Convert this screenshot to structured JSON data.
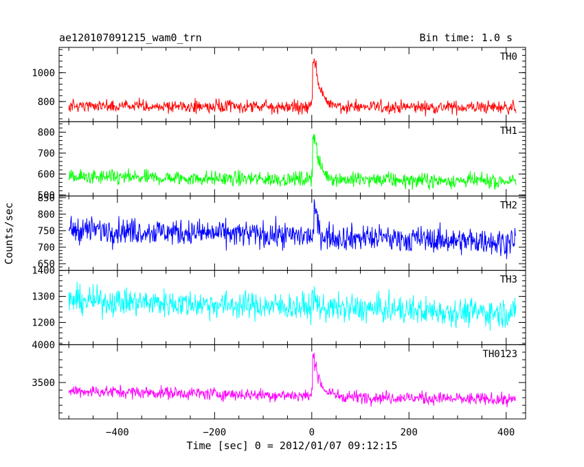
{
  "chart_data": {
    "type": "line",
    "title": "ae120107091215_wam0_trn",
    "bin_time": "Bin time: 1.0 s",
    "xlabel": "Time [sec] 0 = 2012/01/07 09:12:15",
    "ylabel": "Counts/sec",
    "xlim": [
      -520,
      440
    ],
    "x_range": [
      -500,
      420
    ],
    "x_ticks": [
      -400,
      -200,
      0,
      200,
      400
    ],
    "x_tick_labels": [
      "−400",
      "−200",
      "0",
      "200",
      "400"
    ],
    "grid": false,
    "panels": [
      {
        "name": "TH0",
        "color": "#ff0000",
        "ylim": [
          660,
          1175
        ],
        "y_ticks": [
          800,
          1000
        ],
        "y_tick_labels": [
          "800",
          "1000"
        ],
        "baseline_start": 765,
        "baseline_end": 760,
        "noise": 32,
        "burst": {
          "peak_time": 2,
          "peak_value": 1175,
          "decay_tau": 14,
          "second_value": 1060
        }
      },
      {
        "name": "TH1",
        "color": "#00ff00",
        "ylim": [
          495,
          850
        ],
        "y_ticks": [
          500,
          600,
          700,
          800
        ],
        "y_tick_labels": [
          "500",
          "600",
          "700",
          "800"
        ],
        "baseline_start": 585,
        "baseline_end": 565,
        "noise": 25,
        "burst": {
          "peak_time": 2,
          "peak_value": 850,
          "decay_tau": 12,
          "second_value": 810
        }
      },
      {
        "name": "TH2",
        "color": "#0000ff",
        "ylim": [
          630,
          855
        ],
        "y_ticks": [
          650,
          700,
          750,
          800,
          850
        ],
        "y_tick_labels": [
          "650",
          "700",
          "750",
          "800",
          "850"
        ],
        "baseline_start": 755,
        "baseline_end": 715,
        "noise": 28,
        "burst": {
          "peak_time": 5,
          "peak_value": 850,
          "decay_tau": 6,
          "second_value": 800
        }
      },
      {
        "name": "TH3",
        "color": "#00ffff",
        "ylim": [
          1115,
          1400
        ],
        "y_ticks": [
          1200,
          1300,
          1400
        ],
        "y_tick_labels": [
          "1200",
          "1300",
          "1400"
        ],
        "baseline_start": 1285,
        "baseline_end": 1235,
        "noise": 38,
        "burst": {
          "peak_time": 2,
          "peak_value": 1330,
          "decay_tau": 4,
          "second_value": 1300
        }
      },
      {
        "name": "TH0123",
        "color": "#ff00ff",
        "ylim": [
          3020,
          4000
        ],
        "y_ticks": [
          3500,
          4000
        ],
        "y_tick_labels": [
          "3500",
          "4000"
        ],
        "baseline_start": 3390,
        "baseline_end": 3270,
        "noise": 60,
        "burst": {
          "peak_time": 2,
          "peak_value": 4000,
          "decay_tau": 13,
          "second_value": 3950
        }
      }
    ]
  }
}
